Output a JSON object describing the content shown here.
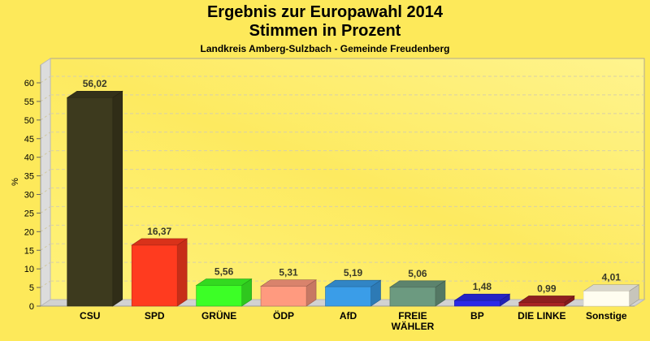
{
  "chart_data": {
    "type": "bar",
    "title": "Ergebnis zur Europawahl 2014",
    "title2": "Stimmen in Prozent",
    "subtitle": "Landkreis Amberg-Sulzbach - Gemeinde Freudenberg",
    "xlabel": "",
    "ylabel": "%",
    "ylim": [
      0,
      64
    ],
    "yticks": [
      0,
      5,
      10,
      15,
      20,
      25,
      30,
      35,
      40,
      45,
      50,
      55,
      60
    ],
    "grid": true,
    "categories": [
      "CSU",
      "SPD",
      "GRÜNE",
      "ÖDP",
      "AfD",
      "FREIE|WÄHLER",
      "BP",
      "DIE LINKE",
      "Sonstige"
    ],
    "values": [
      56.02,
      16.37,
      5.56,
      5.31,
      5.19,
      5.06,
      1.48,
      0.99,
      4.01
    ],
    "value_labels": [
      "56,02",
      "16,37",
      "5,56",
      "5,31",
      "5,19",
      "5,06",
      "1,48",
      "0,99",
      "4,01"
    ],
    "colors": [
      "#3d3a1e",
      "#ff3b1f",
      "#3cff26",
      "#ff9a7f",
      "#3a9de8",
      "#6c9a80",
      "#2a2ae8",
      "#a82424",
      "#fffdf0"
    ]
  }
}
